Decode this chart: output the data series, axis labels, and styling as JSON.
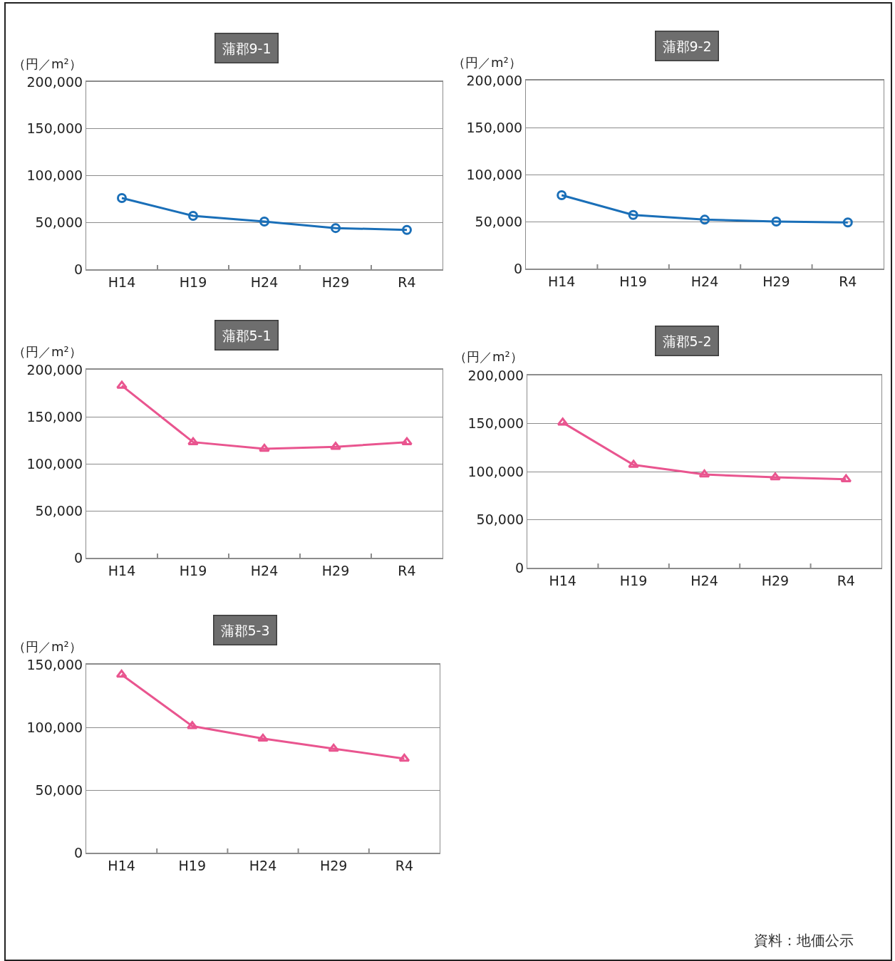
{
  "chart_data": [
    {
      "type": "line",
      "title": "蒲郡9-1",
      "ylabel": "（円／m²）",
      "categories": [
        "H14",
        "H19",
        "H24",
        "H29",
        "R4"
      ],
      "series": [
        {
          "color": "#1a6fb8",
          "values": [
            76000,
            57000,
            51000,
            44000,
            42000
          ]
        }
      ],
      "ylim": [
        0,
        200000
      ],
      "yticks": [
        {
          "value": 0,
          "label": "0"
        },
        {
          "value": 50000,
          "label": "50,000"
        },
        {
          "value": 100000,
          "label": "100,000"
        },
        {
          "value": 150000,
          "label": "150,000"
        },
        {
          "value": 200000,
          "label": "200,000"
        }
      ],
      "grid": "y",
      "marker": "circle"
    },
    {
      "type": "line",
      "title": "蒲郡9-2",
      "ylabel": "（円／m²）",
      "categories": [
        "H14",
        "H19",
        "H24",
        "H29",
        "R4"
      ],
      "series": [
        {
          "color": "#1a6fb8",
          "values": [
            78000,
            57000,
            52000,
            50000,
            49000
          ]
        }
      ],
      "ylim": [
        0,
        200000
      ],
      "yticks": [
        {
          "value": 0,
          "label": "0"
        },
        {
          "value": 50000,
          "label": "50,000"
        },
        {
          "value": 100000,
          "label": "100,000"
        },
        {
          "value": 150000,
          "label": "150,000"
        },
        {
          "value": 200000,
          "label": "200,000"
        }
      ],
      "grid": "y",
      "marker": "circle"
    },
    {
      "type": "line",
      "title": "蒲郡5-1",
      "ylabel": "（円／m²）",
      "categories": [
        "H14",
        "H19",
        "H24",
        "H29",
        "R4"
      ],
      "series": [
        {
          "color": "#e9558f",
          "values": [
            183000,
            123000,
            116000,
            118000,
            123000
          ]
        }
      ],
      "ylim": [
        0,
        200000
      ],
      "yticks": [
        {
          "value": 0,
          "label": "0"
        },
        {
          "value": 50000,
          "label": "50,000"
        },
        {
          "value": 100000,
          "label": "100,000"
        },
        {
          "value": 150000,
          "label": "150,000"
        },
        {
          "value": 200000,
          "label": "200,000"
        }
      ],
      "grid": "y",
      "marker": "triangle"
    },
    {
      "type": "line",
      "title": "蒲郡5-2",
      "ylabel": "（円／m²）",
      "categories": [
        "H14",
        "H19",
        "H24",
        "H29",
        "R4"
      ],
      "series": [
        {
          "color": "#e9558f",
          "values": [
            151000,
            107000,
            97000,
            94000,
            92000
          ]
        }
      ],
      "ylim": [
        0,
        200000
      ],
      "yticks": [
        {
          "value": 0,
          "label": "0"
        },
        {
          "value": 50000,
          "label": "50,000"
        },
        {
          "value": 100000,
          "label": "100,000"
        },
        {
          "value": 150000,
          "label": "150,000"
        },
        {
          "value": 200000,
          "label": "200,000"
        }
      ],
      "grid": "y",
      "marker": "triangle"
    },
    {
      "type": "line",
      "title": "蒲郡5-3",
      "ylabel": "（円／m²）",
      "categories": [
        "H14",
        "H19",
        "H24",
        "H29",
        "R4"
      ],
      "series": [
        {
          "color": "#e9558f",
          "values": [
            142000,
            101000,
            91000,
            83000,
            75000
          ]
        }
      ],
      "ylim": [
        0,
        150000
      ],
      "yticks": [
        {
          "value": 0,
          "label": "0"
        },
        {
          "value": 50000,
          "label": "50,000"
        },
        {
          "value": 100000,
          "label": "100,000"
        },
        {
          "value": 150000,
          "label": "150,000"
        }
      ],
      "grid": "y",
      "marker": "triangle",
      "annotations": [
        "資料：地価公示"
      ]
    }
  ]
}
